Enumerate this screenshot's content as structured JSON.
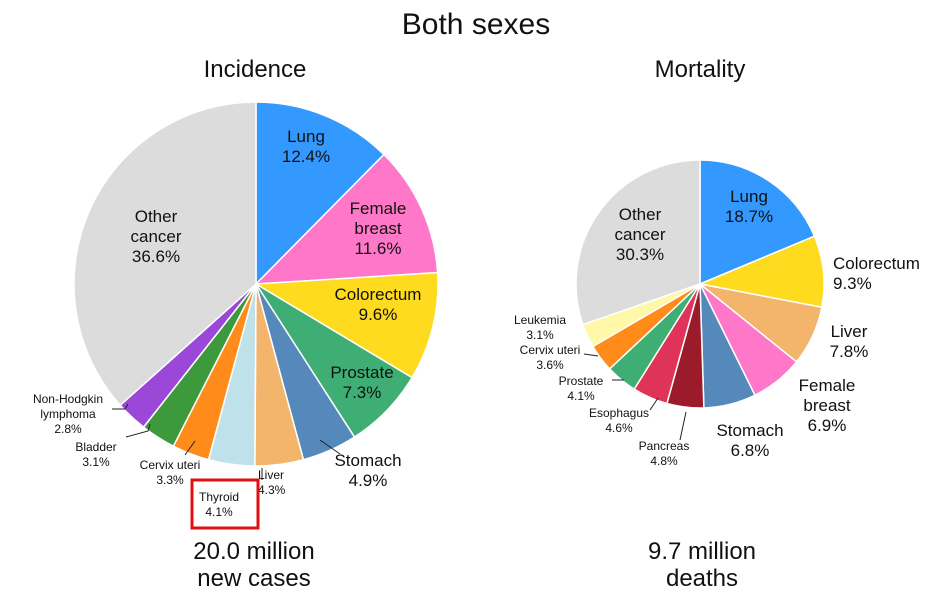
{
  "title": "Both sexes",
  "chart_data": [
    {
      "type": "pie",
      "title": "Incidence",
      "total": [
        "20.0 million",
        "new cases"
      ],
      "slices": [
        {
          "label": [
            "Lung"
          ],
          "value": "12.4%",
          "pct": 12.4,
          "color": "#3399ff"
        },
        {
          "label": [
            "Female",
            "breast"
          ],
          "value": "11.6%",
          "pct": 11.6,
          "color": "#ff77c8"
        },
        {
          "label": [
            "Colorectum"
          ],
          "value": "9.6%",
          "pct": 9.6,
          "color": "#ffdb1f"
        },
        {
          "label": [
            "Prostate"
          ],
          "value": "7.3%",
          "pct": 7.3,
          "color": "#3fae75"
        },
        {
          "label": [
            "Stomach"
          ],
          "value": "4.9%",
          "pct": 4.9,
          "color": "#5588bb"
        },
        {
          "label": [
            "Liver"
          ],
          "value": "4.3%",
          "pct": 4.3,
          "color": "#f3b46b"
        },
        {
          "label": [
            "Thyroid"
          ],
          "value": "4.1%",
          "pct": 4.1,
          "color": "#bfe1ea",
          "highlight": true
        },
        {
          "label": [
            "Cervix uteri"
          ],
          "value": "3.3%",
          "pct": 3.3,
          "color": "#ff8c1a"
        },
        {
          "label": [
            "Bladder"
          ],
          "value": "3.1%",
          "pct": 3.1,
          "color": "#3c9a3c"
        },
        {
          "label": [
            "Non-Hodgkin",
            "lymphoma"
          ],
          "value": "2.8%",
          "pct": 2.8,
          "color": "#9b48d9"
        },
        {
          "label": [
            "Other",
            "cancer"
          ],
          "value": "36.6%",
          "pct": 36.6,
          "color": "#dcdcdc"
        }
      ]
    },
    {
      "type": "pie",
      "title": "Mortality",
      "total": [
        "9.7 million",
        "deaths"
      ],
      "slices": [
        {
          "label": [
            "Lung"
          ],
          "value": "18.7%",
          "pct": 18.7,
          "color": "#3399ff"
        },
        {
          "label": [
            "Colorectum"
          ],
          "value": "9.3%",
          "pct": 9.3,
          "color": "#ffdb1f"
        },
        {
          "label": [
            "Liver"
          ],
          "value": "7.8%",
          "pct": 7.8,
          "color": "#f3b46b"
        },
        {
          "label": [
            "Female",
            "breast"
          ],
          "value": "6.9%",
          "pct": 6.9,
          "color": "#ff77c8"
        },
        {
          "label": [
            "Stomach"
          ],
          "value": "6.8%",
          "pct": 6.8,
          "color": "#5588bb"
        },
        {
          "label": [
            "Pancreas"
          ],
          "value": "4.8%",
          "pct": 4.8,
          "color": "#9b1b2b"
        },
        {
          "label": [
            "Esophagus"
          ],
          "value": "4.6%",
          "pct": 4.6,
          "color": "#e0335a"
        },
        {
          "label": [
            "Prostate"
          ],
          "value": "4.1%",
          "pct": 4.1,
          "color": "#3fae75"
        },
        {
          "label": [
            "Cervix uteri"
          ],
          "value": "3.6%",
          "pct": 3.6,
          "color": "#ff8c1a"
        },
        {
          "label": [
            "Leukemia"
          ],
          "value": "3.1%",
          "pct": 3.1,
          "color": "#fff8a8"
        },
        {
          "label": [
            "Other",
            "cancer"
          ],
          "value": "30.3%",
          "pct": 30.3,
          "color": "#dcdcdc"
        }
      ]
    }
  ]
}
